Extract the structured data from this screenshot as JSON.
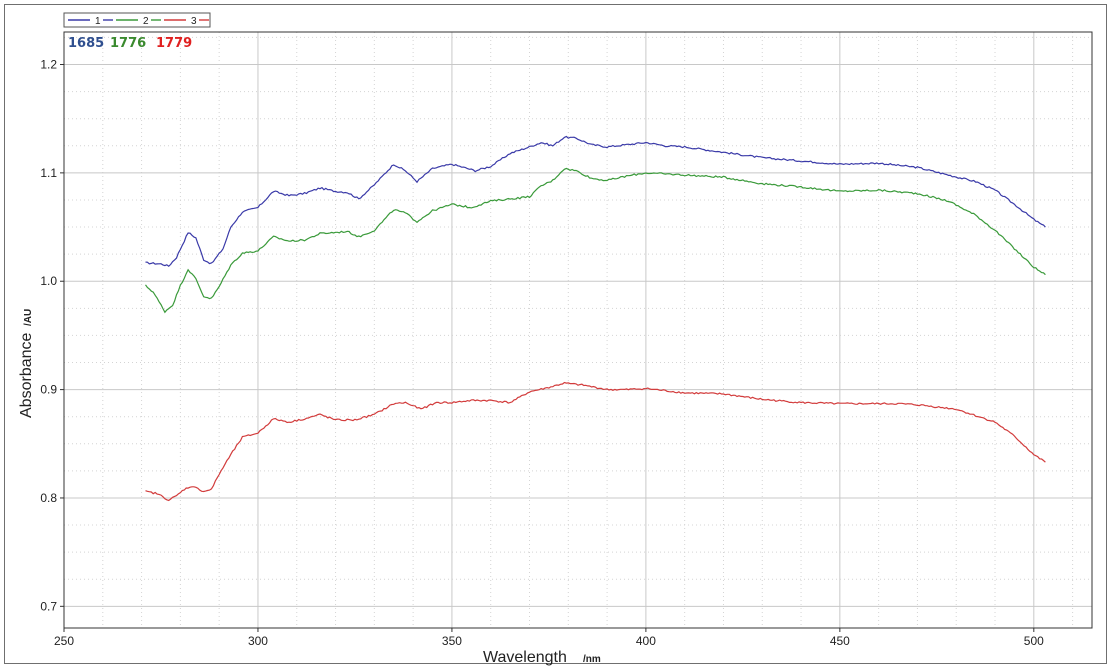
{
  "chart_data": {
    "type": "line",
    "xlabel": "Wavelength",
    "xunit": "/nm",
    "ylabel": "Absorbance",
    "yunit": "/AU",
    "xlim": [
      250,
      515
    ],
    "ylim": [
      0.68,
      1.23
    ],
    "xticks": [
      250,
      300,
      350,
      400,
      450,
      500
    ],
    "yticks": [
      0.7,
      0.8,
      0.9,
      1.0,
      1.1,
      1.2
    ],
    "ytick_labels": [
      "0.7",
      "0.8",
      "0.9",
      "1.0",
      "1.1",
      "1.2"
    ],
    "grid": true,
    "legend_position": "top-left",
    "annotations": [
      {
        "text": "1685",
        "color": "#2f4f8f"
      },
      {
        "text": "1776",
        "color": "#3a8a2e"
      },
      {
        "text": "1779",
        "color": "#e02020"
      }
    ],
    "series": [
      {
        "name": "1",
        "color": "#3a3aa8",
        "x": [
          271,
          275,
          277,
          279,
          282,
          284,
          286,
          288,
          291,
          293,
          296,
          300,
          304,
          308,
          312,
          316,
          320,
          323,
          326,
          330,
          335,
          338,
          341,
          345,
          350,
          356,
          360,
          365,
          370,
          373,
          376,
          379,
          382,
          386,
          390,
          395,
          400,
          405,
          410,
          420,
          430,
          440,
          450,
          460,
          470,
          478,
          485,
          490,
          495,
          500,
          503
        ],
        "y": [
          1.017,
          1.016,
          1.014,
          1.022,
          1.045,
          1.04,
          1.02,
          1.016,
          1.03,
          1.05,
          1.064,
          1.068,
          1.083,
          1.079,
          1.081,
          1.086,
          1.083,
          1.082,
          1.076,
          1.089,
          1.108,
          1.102,
          1.092,
          1.104,
          1.108,
          1.102,
          1.106,
          1.118,
          1.124,
          1.128,
          1.125,
          1.133,
          1.132,
          1.126,
          1.124,
          1.126,
          1.128,
          1.125,
          1.124,
          1.119,
          1.114,
          1.111,
          1.108,
          1.109,
          1.105,
          1.098,
          1.092,
          1.084,
          1.071,
          1.057,
          1.05
        ]
      },
      {
        "name": "2",
        "color": "#3a9a3a",
        "x": [
          271,
          273,
          276,
          278,
          280,
          282,
          284,
          286,
          288,
          290,
          293,
          296,
          300,
          304,
          308,
          312,
          316,
          320,
          323,
          326,
          330,
          335,
          338,
          341,
          345,
          350,
          355,
          360,
          365,
          370,
          373,
          376,
          379,
          382,
          386,
          390,
          395,
          400,
          405,
          410,
          420,
          430,
          440,
          450,
          460,
          470,
          478,
          485,
          490,
          495,
          500,
          503
        ],
        "y": [
          0.996,
          0.99,
          0.972,
          0.978,
          0.996,
          1.011,
          1.002,
          0.986,
          0.984,
          0.995,
          1.015,
          1.026,
          1.028,
          1.041,
          1.037,
          1.038,
          1.044,
          1.045,
          1.046,
          1.041,
          1.047,
          1.066,
          1.063,
          1.055,
          1.065,
          1.071,
          1.068,
          1.074,
          1.076,
          1.078,
          1.088,
          1.093,
          1.104,
          1.102,
          1.095,
          1.093,
          1.097,
          1.1,
          1.099,
          1.098,
          1.096,
          1.09,
          1.087,
          1.083,
          1.084,
          1.081,
          1.074,
          1.061,
          1.047,
          1.03,
          1.013,
          1.006
        ]
      },
      {
        "name": "3",
        "color": "#d23c3c",
        "x": [
          271,
          274,
          277,
          279,
          281,
          283,
          286,
          288,
          290,
          293,
          296,
          300,
          304,
          308,
          312,
          316,
          320,
          325,
          330,
          335,
          338,
          342,
          346,
          350,
          355,
          360,
          365,
          370,
          375,
          379,
          384,
          390,
          395,
          400,
          410,
          420,
          430,
          440,
          450,
          460,
          465,
          470,
          475,
          480,
          485,
          490,
          495,
          500,
          503
        ],
        "y": [
          0.806,
          0.804,
          0.798,
          0.802,
          0.808,
          0.811,
          0.806,
          0.808,
          0.822,
          0.84,
          0.856,
          0.86,
          0.873,
          0.87,
          0.873,
          0.877,
          0.872,
          0.872,
          0.877,
          0.887,
          0.888,
          0.882,
          0.888,
          0.888,
          0.89,
          0.89,
          0.888,
          0.898,
          0.902,
          0.906,
          0.904,
          0.9,
          0.9,
          0.901,
          0.897,
          0.896,
          0.891,
          0.888,
          0.887,
          0.887,
          0.887,
          0.886,
          0.884,
          0.882,
          0.876,
          0.87,
          0.857,
          0.84,
          0.833
        ]
      }
    ]
  }
}
